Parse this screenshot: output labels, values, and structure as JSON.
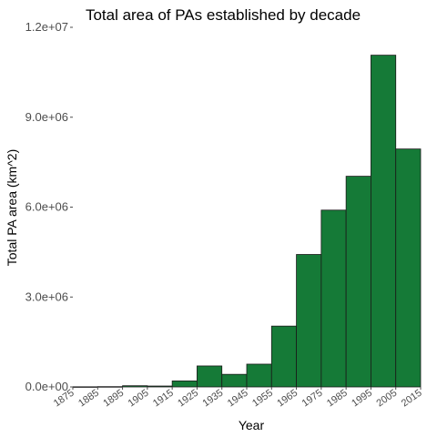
{
  "chart_data": {
    "type": "bar",
    "title": "Total area of PAs established by decade",
    "xlabel": "Year",
    "ylabel": "Total PA area (km^2)",
    "bin_edges": [
      1875,
      1885,
      1895,
      1905,
      1915,
      1925,
      1935,
      1945,
      1955,
      1965,
      1975,
      1985,
      1995,
      2005,
      2015
    ],
    "x_tick_labels": [
      "1875",
      "1885",
      "1895",
      "1905",
      "1915",
      "1925",
      "1935",
      "1945",
      "1955",
      "1965",
      "1975",
      "1985",
      "1995",
      "2005",
      "2015"
    ],
    "values": [
      5000,
      10000,
      40000,
      30000,
      200000,
      700000,
      420000,
      760000,
      2030000,
      4420000,
      5900000,
      7030000,
      11070000,
      7940000
    ],
    "y_ticks": [
      0,
      3000000,
      6000000,
      9000000,
      12000000
    ],
    "y_tick_labels": [
      "0.0e+00",
      "3.0e+06",
      "6.0e+06",
      "9.0e+06",
      "1.2e+07"
    ],
    "ylim": [
      0,
      12000000
    ],
    "grid": false,
    "legend": "none",
    "bar_color": "#157a37"
  }
}
